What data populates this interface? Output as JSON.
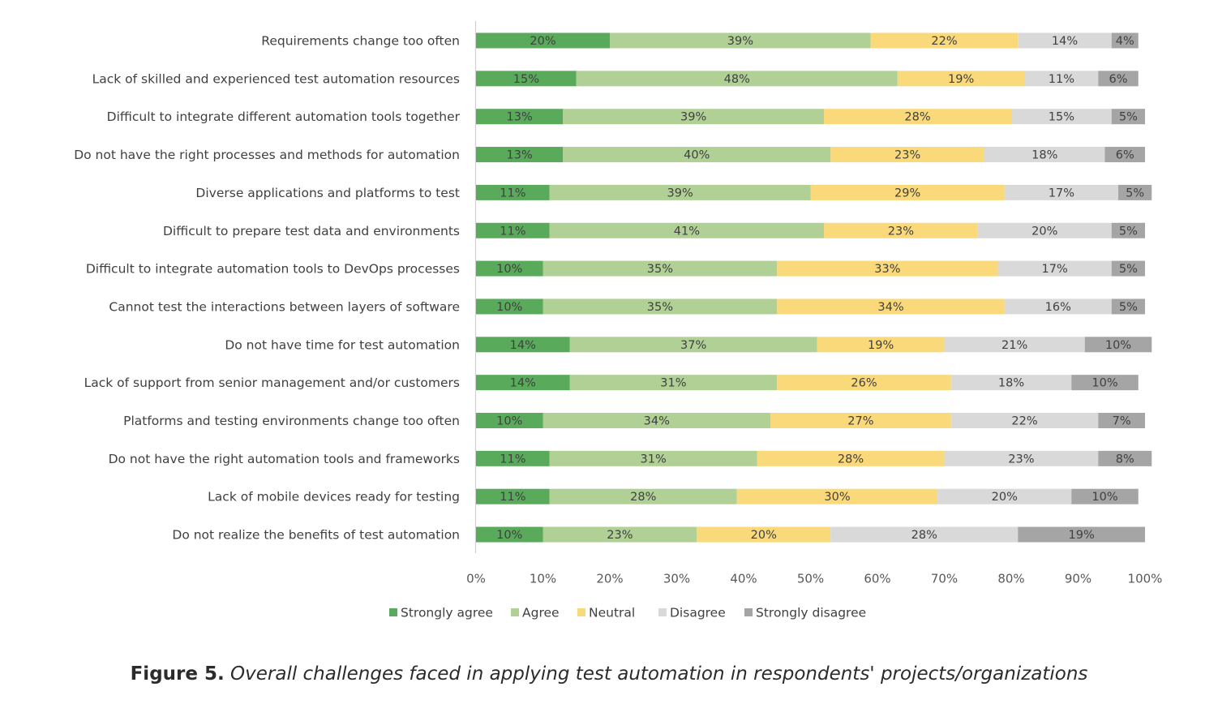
{
  "caption": {
    "label": "Figure 5.",
    "text": " Overall challenges faced in applying test automation in respondents' projects/organizations"
  },
  "chart_data": {
    "type": "bar",
    "orientation": "horizontal",
    "stacked": true,
    "title": "",
    "xlabel": "",
    "ylabel": "",
    "xlim": [
      0,
      100
    ],
    "x_ticks": [
      "0%",
      "10%",
      "20%",
      "30%",
      "40%",
      "50%",
      "60%",
      "70%",
      "80%",
      "90%",
      "100%"
    ],
    "grid": false,
    "legend_position": "bottom",
    "categories": [
      "Requirements change too often",
      "Lack of skilled and experienced test automation resources",
      "Difficult to integrate different automation tools together",
      "Do not have the right processes and methods for automation",
      "Diverse applications and platforms to test",
      "Difficult to prepare test data and environments",
      "Difficult to integrate automation tools to DevOps processes",
      "Cannot test the interactions between layers of software",
      "Do not have time for test automation",
      "Lack of support from senior management and/or customers",
      "Platforms and testing environments change too often",
      "Do not have the right automation tools and frameworks",
      "Lack of mobile devices ready for testing",
      "Do not realize the benefits of test automation"
    ],
    "series": [
      {
        "name": "Strongly agree",
        "color": "#5aaa5c",
        "values": [
          20,
          15,
          13,
          13,
          11,
          11,
          10,
          10,
          14,
          14,
          10,
          11,
          11,
          10
        ]
      },
      {
        "name": "Agree",
        "color": "#b0d095",
        "values": [
          39,
          48,
          39,
          40,
          39,
          41,
          35,
          35,
          37,
          31,
          34,
          31,
          28,
          23
        ]
      },
      {
        "name": "Neutral",
        "color": "#fad97a",
        "values": [
          22,
          19,
          28,
          23,
          29,
          23,
          33,
          34,
          19,
          26,
          27,
          28,
          30,
          20
        ]
      },
      {
        "name": "Disagree",
        "color": "#d9d9d9",
        "values": [
          14,
          11,
          15,
          18,
          17,
          20,
          17,
          16,
          21,
          18,
          22,
          23,
          20,
          28
        ]
      },
      {
        "name": "Strongly disagree",
        "color": "#a5a5a5",
        "values": [
          4,
          6,
          5,
          6,
          5,
          5,
          5,
          5,
          10,
          10,
          7,
          8,
          10,
          19
        ]
      }
    ]
  }
}
